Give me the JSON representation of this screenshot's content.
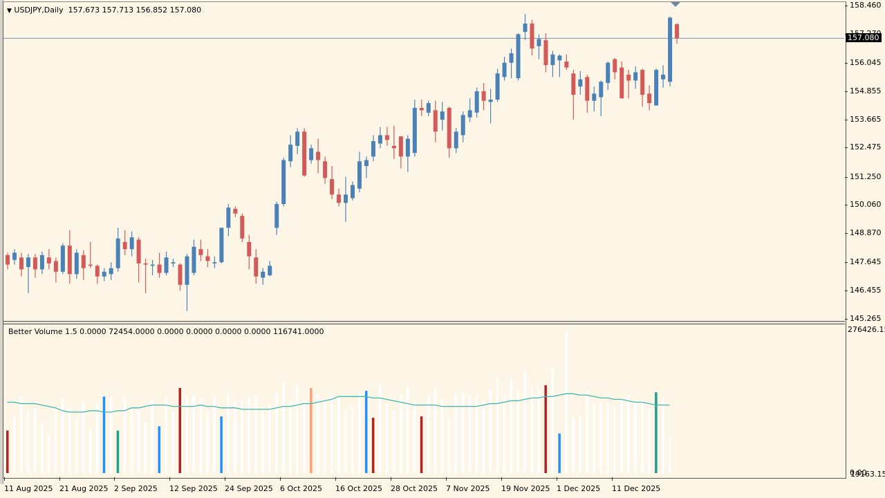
{
  "chart": {
    "symbol_line": "USDJPY,Daily",
    "ohlc_line": "157.673 157.713 156.852 157.080",
    "menu_icon": "triangle-down",
    "current_price": "157.080",
    "price_axis_labels": [
      "158.460",
      "157.270",
      "156.045",
      "154.855",
      "153.665",
      "152.475",
      "151.250",
      "150.060",
      "148.870",
      "147.645",
      "146.455",
      "145.265"
    ],
    "time_axis_labels": [
      "11 Aug 2025",
      "21 Aug 2025",
      "2 Sep 2025",
      "12 Sep 2025",
      "24 Sep 2025",
      "6 Oct 2025",
      "16 Oct 2025",
      "28 Oct 2025",
      "7 Nov 2025",
      "19 Nov 2025",
      "1 Dec 2025",
      "11 Dec 2025"
    ],
    "colors": {
      "bull": "#4a82b8",
      "bear": "#d25a5a",
      "background": "#fdf5e6",
      "price_line": "#7d93a8"
    }
  },
  "indicator": {
    "title_line": "Better Volume 1.5 0.0000 72454.0000 0.0000 0.0000 0.0000 0.0000 116741.0000",
    "axis_max": "276426.15",
    "axis_min": "0.00",
    "axis_min_overlap": "19163.15",
    "colors": {
      "normal": "#ffffff",
      "climax_up": "#2090ff",
      "climax_down": "#b22222",
      "churn": "#20a090",
      "low_vol_churn": "#ffa07a",
      "ma": "#3cb8b0"
    }
  },
  "chart_data": [
    {
      "type": "candlestick",
      "title": "USDJPY,Daily",
      "ylim": [
        145.265,
        158.46
      ],
      "x_range": [
        "11 Aug 2025",
        "19 Dec 2025"
      ],
      "yticks": [
        158.46,
        157.27,
        156.045,
        154.855,
        153.665,
        152.475,
        151.25,
        150.06,
        148.87,
        147.645,
        146.455,
        145.265
      ],
      "last": {
        "open": 157.673,
        "high": 157.713,
        "low": 156.852,
        "close": 157.08
      },
      "candles": [
        [
          147.95,
          147.55,
          147.35,
          148.05
        ],
        [
          147.75,
          148.05,
          147.55,
          148.2
        ],
        [
          147.85,
          147.35,
          147.05,
          148.05
        ],
        [
          147.45,
          147.85,
          146.35,
          148.0
        ],
        [
          147.85,
          147.35,
          147.0,
          148.0
        ],
        [
          147.35,
          147.95,
          147.15,
          148.1
        ],
        [
          147.85,
          147.6,
          147.35,
          148.2
        ],
        [
          147.7,
          147.25,
          146.8,
          147.85
        ],
        [
          147.25,
          148.35,
          147.15,
          148.45
        ],
        [
          148.35,
          147.15,
          146.75,
          149.0
        ],
        [
          147.15,
          148.05,
          146.95,
          148.2
        ],
        [
          147.95,
          147.4,
          146.9,
          148.15
        ],
        [
          147.55,
          147.5,
          147.4,
          148.5
        ],
        [
          147.5,
          147.05,
          146.75,
          147.55
        ],
        [
          147.05,
          147.25,
          146.85,
          147.4
        ],
        [
          147.15,
          147.4,
          146.9,
          147.65
        ],
        [
          147.4,
          148.65,
          147.25,
          149.1
        ],
        [
          148.5,
          148.2,
          147.95,
          149.0
        ],
        [
          148.2,
          148.7,
          147.9,
          148.95
        ],
        [
          148.6,
          147.6,
          146.8,
          148.7
        ],
        [
          147.6,
          147.55,
          146.35,
          147.8
        ],
        [
          147.5,
          147.55,
          147.1,
          147.75
        ],
        [
          147.55,
          147.2,
          147.0,
          148.05
        ],
        [
          147.2,
          147.85,
          147.1,
          148.1
        ],
        [
          147.6,
          147.65,
          147.45,
          147.8
        ],
        [
          147.55,
          146.7,
          146.45,
          147.6
        ],
        [
          146.7,
          147.9,
          145.6,
          148.0
        ],
        [
          147.2,
          148.3,
          147.1,
          148.6
        ],
        [
          148.2,
          147.95,
          147.7,
          148.6
        ],
        [
          147.9,
          147.7,
          147.45,
          148.2
        ],
        [
          147.6,
          147.65,
          147.4,
          147.9
        ],
        [
          147.65,
          149.1,
          147.6,
          149.1
        ],
        [
          149.1,
          149.95,
          148.75,
          150.1
        ],
        [
          149.9,
          149.7,
          149.55,
          150.0
        ],
        [
          149.6,
          148.65,
          148.5,
          149.7
        ],
        [
          148.5,
          147.9,
          147.35,
          148.8
        ],
        [
          147.85,
          147.05,
          146.75,
          148.2
        ],
        [
          147.0,
          147.25,
          146.7,
          147.4
        ],
        [
          147.1,
          147.5,
          147.05,
          147.7
        ],
        [
          149.1,
          150.1,
          148.8,
          150.2
        ],
        [
          150.1,
          151.95,
          150.0,
          152.05
        ],
        [
          151.9,
          152.6,
          151.65,
          153.0
        ],
        [
          152.55,
          153.15,
          152.2,
          153.3
        ],
        [
          153.15,
          151.3,
          151.25,
          153.3
        ],
        [
          151.95,
          152.45,
          151.8,
          152.6
        ],
        [
          152.3,
          151.95,
          151.4,
          152.85
        ],
        [
          151.9,
          151.2,
          150.95,
          152.1
        ],
        [
          151.15,
          150.5,
          150.3,
          151.7
        ],
        [
          150.5,
          150.15,
          150.0,
          150.75
        ],
        [
          150.15,
          150.5,
          149.35,
          151.25
        ],
        [
          150.35,
          150.9,
          150.25,
          151.05
        ],
        [
          150.75,
          151.9,
          150.6,
          152.3
        ],
        [
          151.7,
          151.95,
          151.2,
          152.1
        ],
        [
          152.1,
          152.75,
          151.9,
          153.0
        ],
        [
          152.65,
          153.0,
          152.45,
          153.35
        ],
        [
          153.0,
          152.8,
          152.55,
          153.35
        ],
        [
          152.55,
          152.45,
          152.0,
          153.4
        ],
        [
          152.95,
          152.1,
          151.6,
          152.9
        ],
        [
          152.1,
          152.85,
          151.45,
          153.0
        ],
        [
          152.25,
          154.15,
          152.1,
          154.5
        ],
        [
          154.15,
          154.05,
          153.8,
          154.5
        ],
        [
          153.95,
          154.35,
          153.8,
          154.45
        ],
        [
          154.05,
          153.15,
          152.7,
          154.45
        ],
        [
          153.65,
          154.0,
          153.2,
          154.4
        ],
        [
          154.15,
          152.45,
          152.05,
          154.2
        ],
        [
          152.45,
          153.15,
          152.25,
          153.3
        ],
        [
          153.0,
          153.85,
          152.7,
          154.0
        ],
        [
          153.75,
          154.05,
          153.55,
          154.55
        ],
        [
          153.95,
          154.85,
          153.75,
          155.0
        ],
        [
          154.85,
          154.45,
          154.05,
          155.2
        ],
        [
          154.4,
          154.5,
          153.5,
          154.95
        ],
        [
          154.5,
          155.6,
          154.4,
          155.8
        ],
        [
          155.45,
          156.05,
          155.3,
          156.3
        ],
        [
          156.05,
          156.45,
          155.4,
          156.65
        ],
        [
          155.4,
          157.25,
          155.3,
          157.3
        ],
        [
          157.35,
          157.7,
          157.0,
          158.1
        ],
        [
          157.7,
          156.65,
          156.35,
          157.85
        ],
        [
          156.75,
          157.05,
          156.2,
          157.25
        ],
        [
          157.0,
          155.95,
          155.65,
          157.3
        ],
        [
          155.95,
          156.4,
          155.45,
          156.55
        ],
        [
          156.15,
          156.35,
          155.45,
          156.4
        ],
        [
          156.1,
          155.85,
          155.75,
          156.4
        ],
        [
          155.6,
          154.7,
          153.65,
          155.75
        ],
        [
          155.05,
          155.35,
          154.7,
          155.7
        ],
        [
          155.45,
          154.45,
          153.95,
          155.55
        ],
        [
          154.45,
          154.75,
          154.0,
          155.05
        ],
        [
          154.6,
          155.25,
          153.8,
          155.3
        ],
        [
          155.2,
          156.05,
          154.9,
          156.1
        ],
        [
          156.2,
          155.65,
          155.35,
          156.25
        ],
        [
          155.85,
          154.55,
          154.65,
          156.1
        ],
        [
          155.55,
          155.3,
          154.55,
          155.75
        ],
        [
          155.3,
          155.65,
          154.95,
          155.9
        ],
        [
          155.75,
          154.7,
          154.2,
          155.8
        ],
        [
          154.75,
          154.35,
          154.05,
          155.1
        ],
        [
          154.25,
          155.75,
          154.25,
          155.8
        ],
        [
          155.35,
          155.55,
          155.0,
          155.95
        ],
        [
          155.25,
          157.95,
          155.05,
          158.0
        ],
        [
          157.673,
          157.08,
          156.852,
          157.713
        ]
      ]
    },
    {
      "type": "bar",
      "title": "Better Volume 1.5",
      "ylim": [
        0,
        276426.15
      ],
      "ma_label": "MA",
      "volume_pct_of_axis": [
        30,
        40,
        54,
        44,
        46,
        35,
        27,
        44,
        53,
        46,
        39,
        50,
        31,
        49,
        54,
        54,
        30,
        54,
        46,
        44,
        36,
        52,
        33,
        54,
        44,
        60,
        54,
        55,
        53,
        44,
        54,
        40,
        56,
        51,
        52,
        53,
        54,
        46,
        49,
        56,
        64,
        51,
        62,
        52,
        60,
        56,
        51,
        57,
        53,
        45,
        46,
        56,
        58,
        39,
        62,
        49,
        44,
        55,
        61,
        51,
        40,
        55,
        59,
        52,
        39,
        56,
        57,
        55,
        54,
        51,
        58,
        67,
        54,
        67,
        58,
        71,
        61,
        59,
        62,
        74,
        28,
        100,
        39,
        40,
        58,
        49,
        50,
        49,
        47,
        52,
        55,
        50,
        51,
        46,
        57,
        52,
        26
      ],
      "bar_type": [
        "climax_down",
        "normal",
        "normal",
        "normal",
        "normal",
        "normal",
        "normal",
        "normal",
        "normal",
        "normal",
        "normal",
        "normal",
        "normal",
        "normal",
        "climax_up",
        "normal",
        "churn",
        "normal",
        "normal",
        "normal",
        "normal",
        "normal",
        "climax_up",
        "normal",
        "normal",
        "climax_down",
        "normal",
        "normal",
        "normal",
        "normal",
        "normal",
        "climax_up",
        "normal",
        "normal",
        "normal",
        "normal",
        "normal",
        "normal",
        "normal",
        "normal",
        "normal",
        "normal",
        "normal",
        "normal",
        "low_vol_churn",
        "normal",
        "normal",
        "normal",
        "normal",
        "normal",
        "normal",
        "normal",
        "climax_up",
        "climax_down",
        "normal",
        "normal",
        "normal",
        "normal",
        "normal",
        "normal",
        "climax_down",
        "normal",
        "normal",
        "normal",
        "normal",
        "normal",
        "normal",
        "normal",
        "normal",
        "normal",
        "normal",
        "normal",
        "normal",
        "normal",
        "normal",
        "normal",
        "normal",
        "normal",
        "climax_down",
        "normal",
        "climax_up",
        "normal",
        "normal",
        "normal",
        "normal",
        "normal",
        "normal",
        "normal",
        "normal",
        "normal",
        "normal",
        "normal",
        "normal",
        "normal",
        "churn",
        "normal",
        "normal"
      ],
      "ma_pct_of_axis": [
        50,
        50,
        49,
        49,
        49,
        48,
        47,
        46,
        44,
        43,
        43,
        43,
        44,
        44,
        43,
        43,
        44,
        44,
        46,
        46,
        47,
        48,
        48,
        48,
        47,
        47,
        47,
        47,
        48,
        47,
        47,
        46,
        46,
        46,
        45,
        45,
        45,
        45,
        45,
        46,
        47,
        47,
        48,
        49,
        49,
        50,
        51,
        52,
        54,
        54,
        54,
        54,
        54,
        53,
        53,
        52,
        51,
        50,
        49,
        48,
        48,
        48,
        48,
        47,
        47,
        47,
        47,
        47,
        47,
        48,
        49,
        49,
        50,
        51,
        51,
        52,
        53,
        53,
        54,
        54,
        55,
        56,
        56,
        55,
        55,
        54,
        53,
        53,
        52,
        52,
        51,
        50,
        50,
        49,
        48,
        48,
        48
      ]
    }
  ]
}
